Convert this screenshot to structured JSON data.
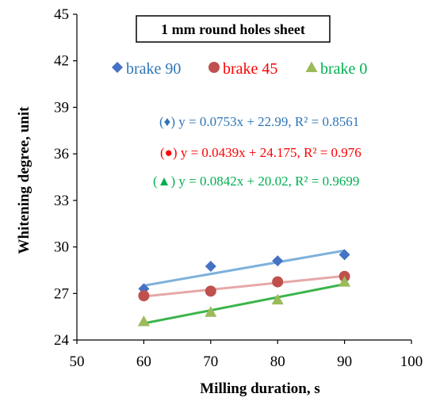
{
  "chart_data": {
    "type": "scatter",
    "title": "1 mm round holes sheet",
    "xlabel": "Milling duration, s",
    "ylabel": "Whitening degree, unit",
    "xlim": [
      50,
      100
    ],
    "ylim": [
      24,
      45
    ],
    "x_ticks": [
      "50",
      "60",
      "70",
      "80",
      "90",
      "100"
    ],
    "y_ticks": [
      "24",
      "27",
      "30",
      "33",
      "36",
      "39",
      "42",
      "45"
    ],
    "grid": false,
    "legend_position": "top",
    "series": [
      {
        "name": "brake 90",
        "marker": "diamond",
        "color": "#4472C4",
        "trend_color": "#7EB1DC",
        "x": [
          60,
          70,
          80,
          90
        ],
        "y": [
          27.3,
          28.75,
          29.1,
          29.5
        ],
        "trend": {
          "slope": 0.0753,
          "intercept": 22.99
        },
        "equation": "(♦) y = 0.0753x + 22.99, R² = 0.8561",
        "equation_color": "#2E75B6"
      },
      {
        "name": "brake 45",
        "marker": "circle",
        "color": "#C0504D",
        "trend_color": "#E6A8A8",
        "x": [
          60,
          70,
          80,
          90
        ],
        "y": [
          26.85,
          27.15,
          27.75,
          28.1
        ],
        "trend": {
          "slope": 0.0439,
          "intercept": 24.175
        },
        "equation": "(●) y = 0.0439x + 24.175, R² = 0.976",
        "equation_color": "#FF0000"
      },
      {
        "name": "brake 0",
        "marker": "triangle",
        "color": "#9BBB59",
        "trend_color": "#3CB44B",
        "x": [
          60,
          70,
          80,
          90
        ],
        "y": [
          25.2,
          25.8,
          26.6,
          27.75
        ],
        "trend": {
          "slope": 0.0842,
          "intercept": 20.02
        },
        "equation": "(▲) y = 0.0842x + 20.02, R² = 0.9699",
        "equation_color": "#00B050"
      }
    ]
  }
}
